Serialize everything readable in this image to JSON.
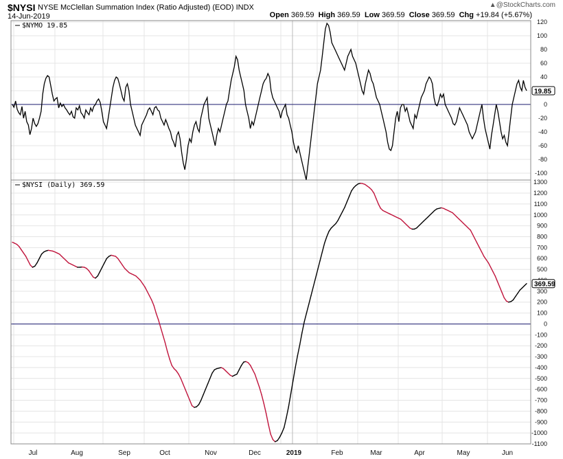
{
  "header": {
    "symbol": "$NYSI",
    "description": "NYSE McClellan Summation Index (Ratio Adjusted) (EOD)",
    "exchange": "INDX",
    "date": "14-Jun-2019",
    "open_label": "Open",
    "open": "369.59",
    "high_label": "High",
    "high": "369.59",
    "low_label": "Low",
    "low": "369.59",
    "close_label": "Close",
    "close": "369.59",
    "chg_label": "Chg",
    "chg": "+19.84 (+5.67%)",
    "watermark": "@StockCharts.com",
    "watermark_arrow": "▲"
  },
  "colors": {
    "up": "#000000",
    "down": "#c0143c",
    "zero_line": "#1a1a6e",
    "grid": "#e4e4e4",
    "frame": "#888888"
  },
  "chart_data": [
    {
      "type": "line",
      "panel": "top",
      "label": "$NYMO 19.85",
      "last_value": "19.85",
      "ylim": [
        -110,
        122
      ],
      "y_ticks": [
        120,
        100,
        80,
        60,
        40,
        20,
        0,
        -20,
        -40,
        -60,
        -80,
        -100
      ],
      "x_ticks": [
        "Jul",
        "Aug",
        "Sep",
        "Oct",
        "Nov",
        "Dec",
        "2019",
        "Feb",
        "Mar",
        "Apr",
        "May",
        "Jun"
      ],
      "series": [
        {
          "values": [
            0,
            -4,
            5,
            -7,
            -12,
            -15,
            -3,
            -20,
            -10,
            -25,
            -30,
            -44,
            -35,
            -20,
            -28,
            -32,
            -28,
            -20,
            -10,
            15,
            30,
            38,
            42,
            40,
            28,
            15,
            5,
            8,
            10,
            -5,
            2,
            -3,
            0,
            -5,
            -8,
            -12,
            -15,
            -10,
            -18,
            -20,
            -5,
            -8,
            -2,
            -12,
            -15,
            -20,
            -8,
            -12,
            -15,
            -5,
            -10,
            -3,
            0,
            5,
            8,
            3,
            -10,
            -25,
            -30,
            -35,
            -20,
            -5,
            10,
            25,
            35,
            40,
            38,
            30,
            20,
            10,
            5,
            25,
            30,
            20,
            0,
            -10,
            -20,
            -30,
            -35,
            -40,
            -45,
            -30,
            -25,
            -20,
            -15,
            -8,
            -5,
            -10,
            -15,
            -5,
            -3,
            -8,
            -10,
            -20,
            -25,
            -30,
            -22,
            -28,
            -35,
            -40,
            -50,
            -55,
            -62,
            -45,
            -40,
            -50,
            -70,
            -85,
            -95,
            -80,
            -60,
            -50,
            -55,
            -40,
            -30,
            -25,
            -35,
            -40,
            -20,
            -10,
            0,
            5,
            10,
            -20,
            -30,
            -40,
            -50,
            -60,
            -45,
            -35,
            -40,
            -30,
            -20,
            -10,
            0,
            5,
            20,
            35,
            45,
            55,
            70,
            65,
            50,
            40,
            30,
            20,
            0,
            -10,
            -20,
            -35,
            -25,
            -30,
            -20,
            -10,
            0,
            10,
            20,
            30,
            35,
            38,
            45,
            40,
            20,
            10,
            5,
            0,
            -5,
            -10,
            -20,
            -10,
            -5,
            0,
            -15,
            -20,
            -30,
            -40,
            -55,
            -65,
            -70,
            -60,
            -70,
            -80,
            -90,
            -100,
            -110,
            -90,
            -70,
            -50,
            -30,
            -10,
            10,
            30,
            40,
            50,
            70,
            90,
            110,
            118,
            115,
            105,
            90,
            85,
            80,
            75,
            70,
            65,
            60,
            55,
            50,
            60,
            70,
            75,
            80,
            70,
            65,
            60,
            50,
            40,
            30,
            20,
            15,
            30,
            40,
            50,
            45,
            35,
            30,
            20,
            10,
            5,
            0,
            -10,
            -20,
            -30,
            -40,
            -55,
            -65,
            -67,
            -60,
            -40,
            -20,
            -10,
            -25,
            -5,
            0,
            0,
            -10,
            -5,
            -15,
            -25,
            -30,
            -35,
            -15,
            -20,
            -10,
            0,
            10,
            15,
            20,
            30,
            35,
            40,
            37,
            30,
            10,
            0,
            -2,
            5,
            15,
            10,
            15,
            0,
            -5,
            -10,
            -15,
            -20,
            -28,
            -30,
            -25,
            -15,
            -5,
            -10,
            -15,
            -20,
            -25,
            -30,
            -40,
            -45,
            -50,
            -45,
            -40,
            -30,
            -20,
            -10,
            0,
            -20,
            -35,
            -45,
            -55,
            -65,
            -45,
            -30,
            -15,
            0,
            -10,
            -25,
            -40,
            -50,
            -45,
            -55,
            -60,
            -40,
            -20,
            0,
            10,
            20,
            30,
            35,
            25,
            20,
            35,
            25,
            20
          ]
        }
      ]
    },
    {
      "type": "line",
      "panel": "bottom",
      "label": "$NYSI (Daily) 369.59",
      "last_value": "369.59",
      "ylim": [
        -1100,
        1320
      ],
      "y_ticks": [
        1300,
        1200,
        1100,
        1000,
        900,
        800,
        700,
        600,
        500,
        400,
        300,
        200,
        100,
        0,
        -100,
        -200,
        -300,
        -400,
        -500,
        -600,
        -700,
        -800,
        -900,
        -1000,
        -1100
      ],
      "x_ticks": [
        "Jul",
        "Aug",
        "Sep",
        "Oct",
        "Nov",
        "Dec",
        "2019",
        "Feb",
        "Mar",
        "Apr",
        "May",
        "Jun"
      ],
      "series": [
        {
          "values": [
            750,
            740,
            730,
            710,
            680,
            650,
            620,
            580,
            540,
            520,
            530,
            560,
            600,
            640,
            660,
            670,
            675,
            672,
            668,
            660,
            650,
            640,
            620,
            600,
            580,
            560,
            550,
            540,
            530,
            520,
            520,
            522,
            520,
            510,
            490,
            460,
            430,
            420,
            440,
            480,
            520,
            560,
            600,
            620,
            630,
            625,
            620,
            600,
            570,
            540,
            510,
            490,
            470,
            460,
            450,
            440,
            420,
            400,
            370,
            340,
            300,
            260,
            220,
            170,
            100,
            40,
            -30,
            -100,
            -170,
            -250,
            -320,
            -380,
            -410,
            -430,
            -460,
            -500,
            -550,
            -600,
            -650,
            -700,
            -750,
            -765,
            -760,
            -740,
            -700,
            -650,
            -600,
            -550,
            -500,
            -450,
            -420,
            -410,
            -405,
            -400,
            -410,
            -430,
            -450,
            -470,
            -480,
            -470,
            -460,
            -420,
            -380,
            -350,
            -345,
            -355,
            -380,
            -420,
            -460,
            -520,
            -580,
            -650,
            -730,
            -820,
            -920,
            -1010,
            -1060,
            -1080,
            -1070,
            -1040,
            -1000,
            -950,
            -860,
            -760,
            -640,
            -520,
            -400,
            -290,
            -190,
            -80,
            20,
            100,
            180,
            260,
            340,
            420,
            500,
            580,
            660,
            740,
            800,
            850,
            880,
            900,
            920,
            950,
            990,
            1030,
            1070,
            1120,
            1170,
            1220,
            1250,
            1270,
            1285,
            1290,
            1287,
            1280,
            1265,
            1250,
            1230,
            1200,
            1150,
            1100,
            1060,
            1040,
            1030,
            1020,
            1010,
            1000,
            990,
            980,
            970,
            960,
            940,
            920,
            900,
            880,
            870,
            870,
            880,
            900,
            920,
            940,
            960,
            980,
            1000,
            1020,
            1040,
            1055,
            1060,
            1065,
            1060,
            1050,
            1040,
            1030,
            1020,
            1000,
            980,
            960,
            940,
            920,
            900,
            880,
            860,
            820,
            780,
            740,
            700,
            660,
            620,
            590,
            560,
            520,
            480,
            440,
            390,
            340,
            290,
            240,
            210,
            200,
            205,
            220,
            250,
            280,
            310,
            330,
            350,
            370
          ]
        }
      ]
    }
  ]
}
